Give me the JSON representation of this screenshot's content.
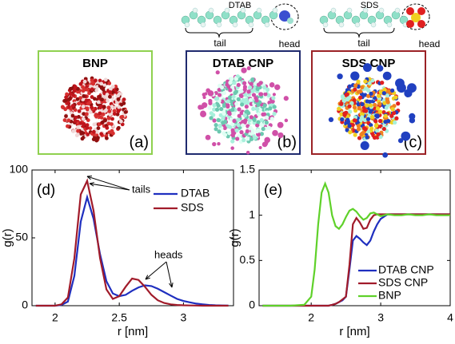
{
  "molecules": [
    {
      "name": "DTAB",
      "tail": "tail",
      "head": "head"
    },
    {
      "name": "SDS",
      "tail": "tail",
      "head": "head"
    }
  ],
  "panels": [
    {
      "title": "BNP",
      "label": "(a)"
    },
    {
      "title": "DTAB CNP",
      "label": "(b)"
    },
    {
      "title": "SDS CNP",
      "label": "(c)"
    }
  ],
  "chart_data": [
    {
      "type": "line",
      "label": "(d)",
      "xlabel": "r [nm]",
      "ylabel": "g(r)",
      "annotations": [
        "tails",
        "heads"
      ],
      "legend": "upper right",
      "x": [
        1.85,
        1.9,
        1.95,
        2.0,
        2.05,
        2.1,
        2.15,
        2.2,
        2.25,
        2.3,
        2.35,
        2.4,
        2.45,
        2.5,
        2.55,
        2.6,
        2.65,
        2.7,
        2.75,
        2.8,
        2.85,
        2.9,
        2.95,
        3.0,
        3.05,
        3.1,
        3.15,
        3.2,
        3.25,
        3.3,
        3.35
      ],
      "series": [
        {
          "name": "DTAB",
          "color": "#1f2fbf",
          "values": [
            0,
            0,
            0,
            0,
            0.5,
            3,
            22,
            62,
            80,
            64,
            38,
            18,
            9,
            7,
            8,
            11,
            13.5,
            15,
            14.5,
            12.5,
            10,
            7.5,
            5,
            3.5,
            2.5,
            1.5,
            1,
            0.5,
            0.3,
            0.2,
            0.1
          ]
        },
        {
          "name": "SDS",
          "color": "#a11b2a",
          "values": [
            0,
            0,
            0,
            0,
            1,
            6,
            35,
            82,
            92,
            70,
            35,
            12,
            5,
            7,
            14,
            20,
            19,
            14,
            8,
            4,
            2,
            1,
            0.5,
            0.3,
            0.2,
            0.1,
            0,
            0,
            0,
            0,
            0
          ]
        }
      ],
      "xlim": [
        1.82,
        3.39
      ],
      "ylim": [
        0,
        100
      ],
      "xticks": [
        2,
        2.5,
        3
      ],
      "yticks": [
        0,
        50,
        100
      ]
    },
    {
      "type": "line",
      "label": "(e)",
      "xlabel": "r [nm]",
      "ylabel": "g(r)",
      "legend": "lower right",
      "x": [
        1.3,
        1.5,
        1.7,
        1.9,
        2.0,
        2.05,
        2.1,
        2.15,
        2.2,
        2.25,
        2.3,
        2.35,
        2.4,
        2.45,
        2.5,
        2.55,
        2.6,
        2.65,
        2.7,
        2.75,
        2.8,
        2.85,
        2.9,
        2.95,
        3.0,
        3.1,
        3.2,
        3.3,
        3.4,
        3.5,
        3.6,
        3.7,
        3.8,
        3.9,
        4.0
      ],
      "series": [
        {
          "name": "DTAB CNP",
          "color": "#1f2fbf",
          "values": [
            0,
            0,
            0,
            0,
            0,
            0,
            0,
            0,
            0,
            0,
            0.01,
            0.02,
            0.04,
            0.06,
            0.1,
            0.4,
            0.72,
            0.77,
            0.74,
            0.7,
            0.67,
            0.72,
            0.82,
            0.9,
            0.96,
            1.01,
            1.01,
            1.01,
            1.01,
            1.01,
            1.01,
            1.01,
            1.01,
            1.01,
            1.01
          ]
        },
        {
          "name": "SDS CNP",
          "color": "#a11b2a",
          "values": [
            0,
            0,
            0,
            0,
            0,
            0,
            0,
            0,
            0,
            0,
            0.01,
            0.02,
            0.04,
            0.07,
            0.1,
            0.45,
            0.9,
            0.97,
            0.92,
            0.85,
            0.86,
            0.95,
            1.0,
            1.01,
            1.01,
            1.01,
            1.01,
            1.01,
            1.01,
            1.01,
            1.01,
            1.01,
            1.01,
            1.01,
            1.01
          ]
        },
        {
          "name": "BNP",
          "color": "#5fd12a",
          "values": [
            0,
            0,
            0,
            0.01,
            0.1,
            0.4,
            0.9,
            1.25,
            1.35,
            1.25,
            1.0,
            0.88,
            0.85,
            0.9,
            0.98,
            1.05,
            1.07,
            1.04,
            0.99,
            0.95,
            0.97,
            1.02,
            1.03,
            1.01,
            0.99,
            1.01,
            1.0,
            1.0,
            1.01,
            1.0,
            1.0,
            1.01,
            1.0,
            1.0,
            1.0
          ]
        }
      ],
      "xlim": [
        1.25,
        4
      ],
      "ylim": [
        0,
        1.5
      ],
      "xticks": [
        2,
        3,
        4
      ],
      "yticks": [
        0,
        0.5,
        1,
        1.5
      ]
    }
  ]
}
